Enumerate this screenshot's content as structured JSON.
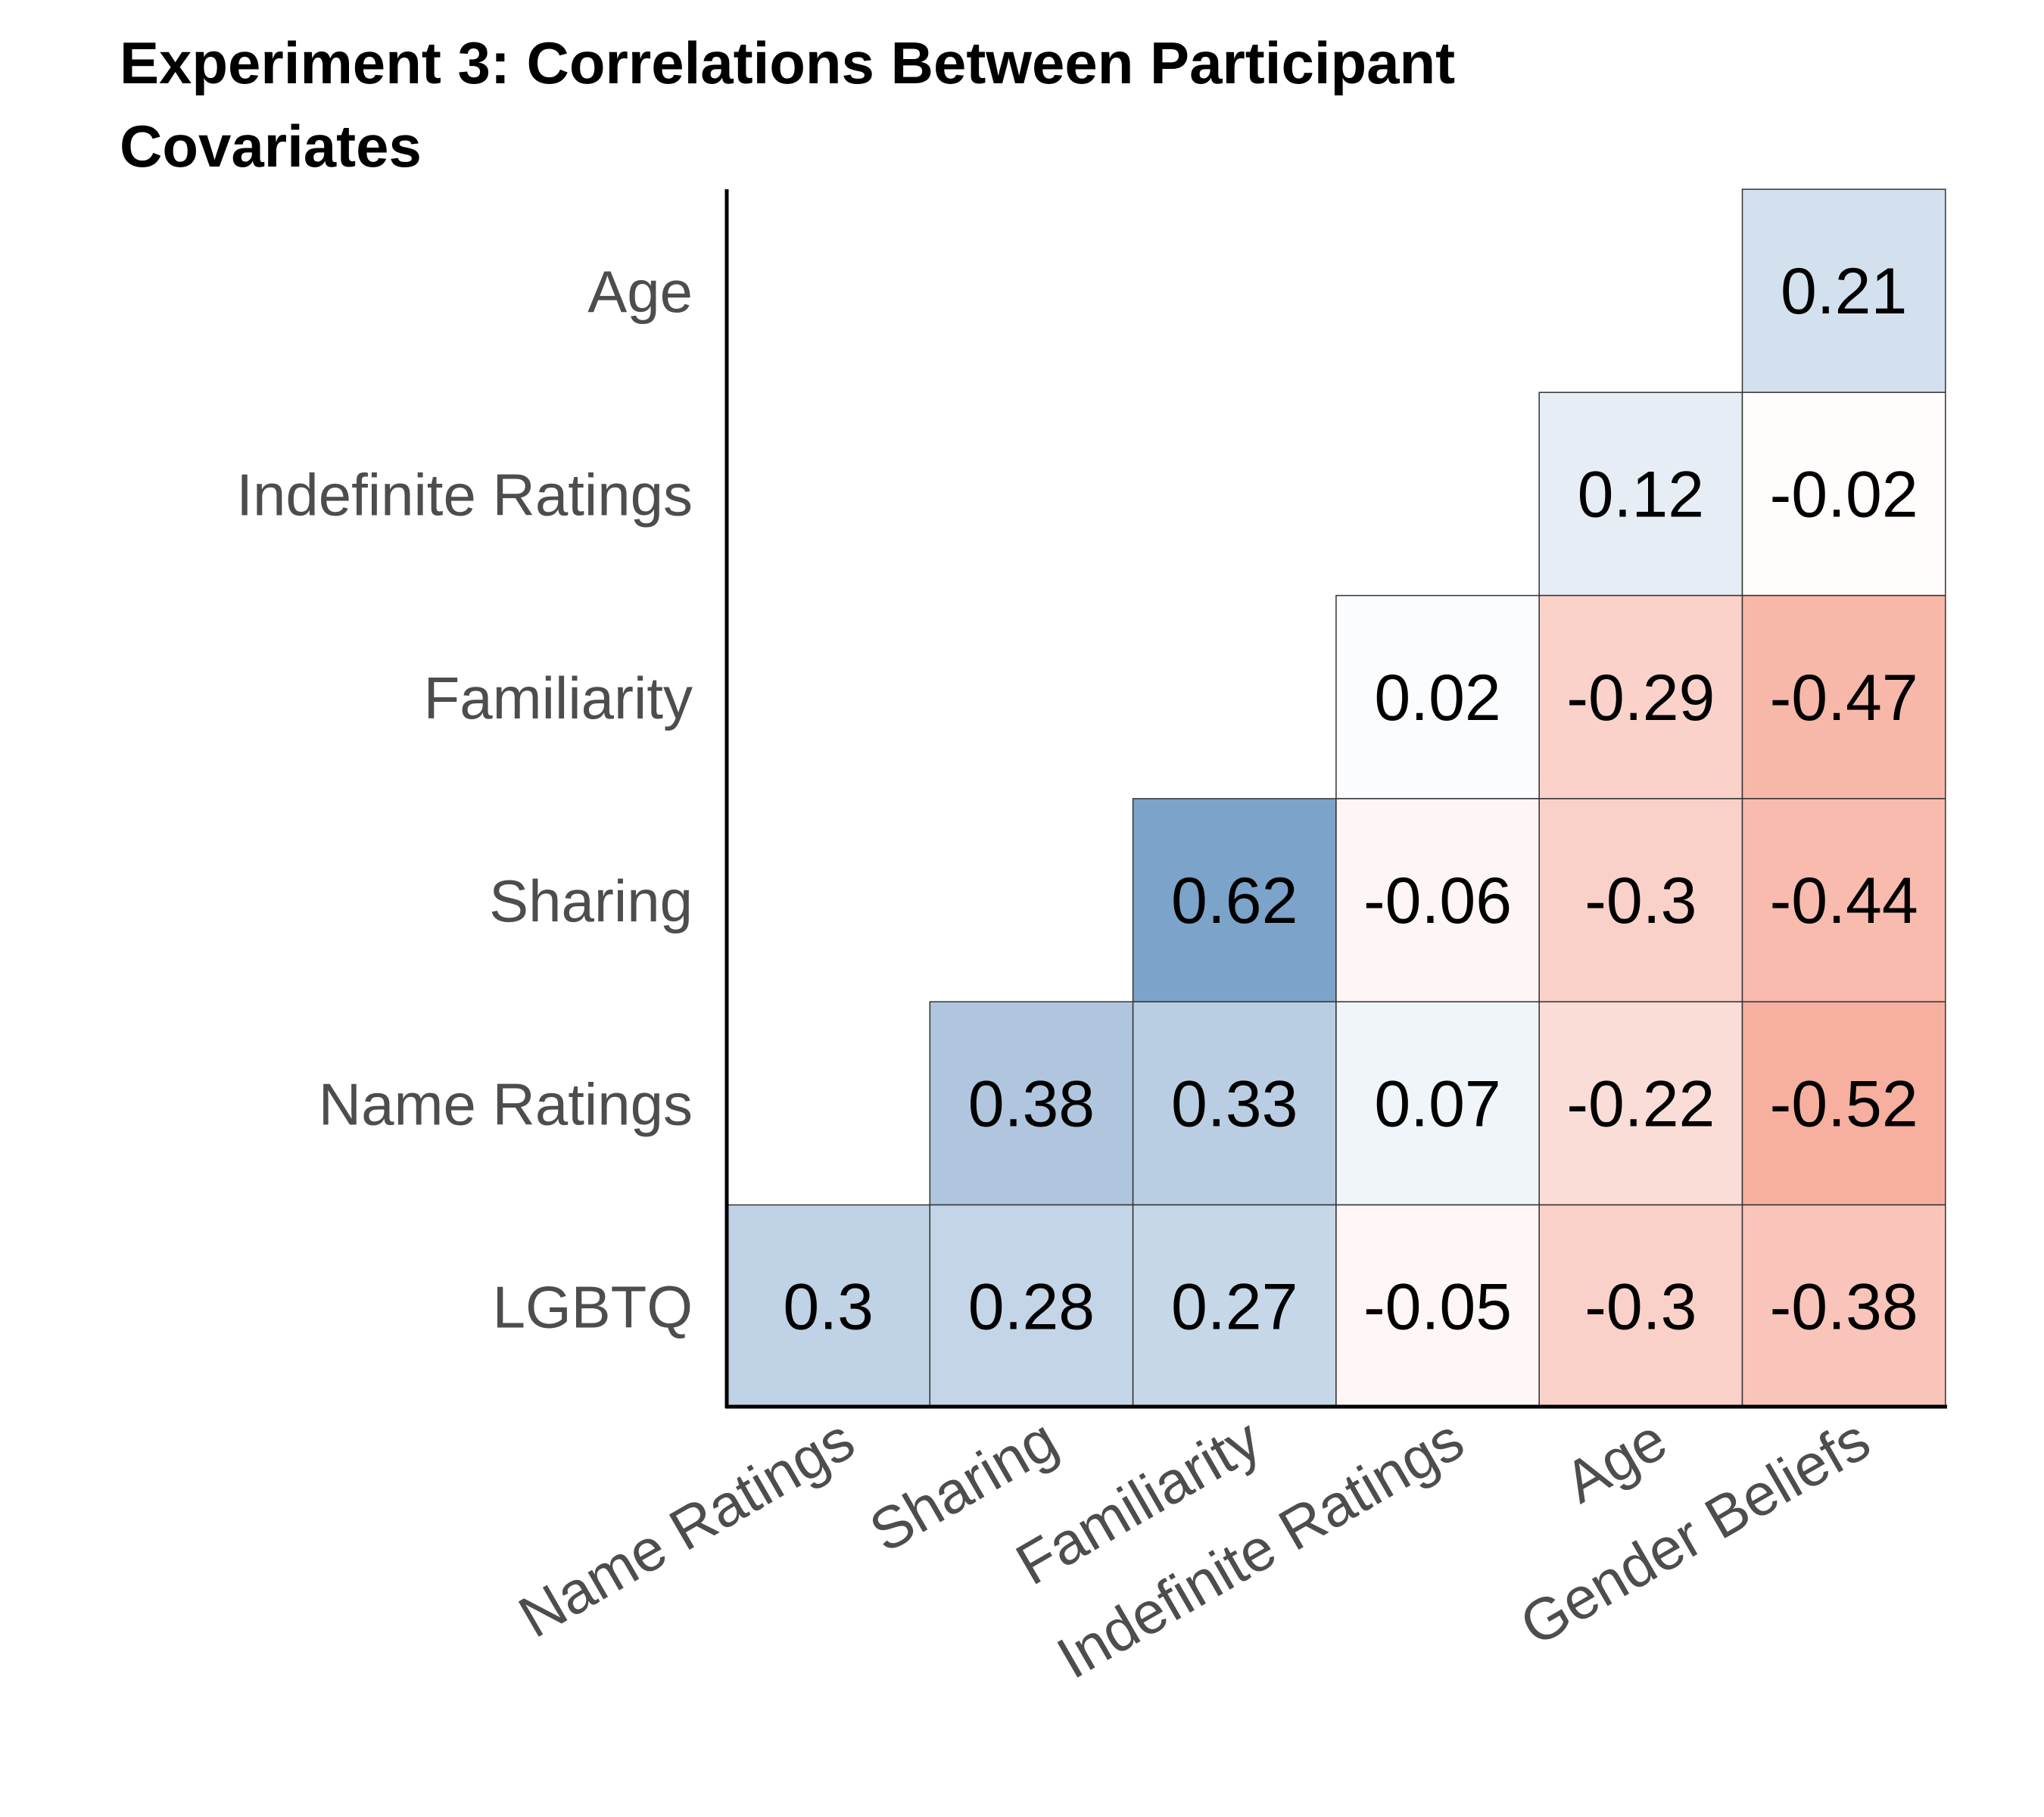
{
  "chart_data": {
    "type": "heatmap",
    "title_lines": [
      "Experiment 3: Correlations Between Participant",
      "Covariates"
    ],
    "xlabel": "",
    "ylabel": "",
    "x_categories": [
      "Name Ratings",
      "Sharing",
      "Familiarity",
      "Indefinite Ratings",
      "Age",
      "Gender Beliefs"
    ],
    "y_categories": [
      "Age",
      "Indefinite Ratings",
      "Familiarity",
      "Sharing",
      "Name Ratings",
      "LGBTQ"
    ],
    "color_scale": {
      "negative": "#ef6548",
      "zero": "#ffffff",
      "positive": "#2c6aa8",
      "range": [
        -1,
        1
      ]
    },
    "cells": [
      {
        "row": "Age",
        "col": "Gender Beliefs",
        "value": 0.21,
        "label": "0.21"
      },
      {
        "row": "Indefinite Ratings",
        "col": "Age",
        "value": 0.12,
        "label": "0.12"
      },
      {
        "row": "Indefinite Ratings",
        "col": "Gender Beliefs",
        "value": -0.02,
        "label": "-0.02"
      },
      {
        "row": "Familiarity",
        "col": "Indefinite Ratings",
        "value": 0.02,
        "label": "0.02"
      },
      {
        "row": "Familiarity",
        "col": "Age",
        "value": -0.29,
        "label": "-0.29"
      },
      {
        "row": "Familiarity",
        "col": "Gender Beliefs",
        "value": -0.47,
        "label": "-0.47"
      },
      {
        "row": "Sharing",
        "col": "Familiarity",
        "value": 0.62,
        "label": "0.62"
      },
      {
        "row": "Sharing",
        "col": "Indefinite Ratings",
        "value": -0.06,
        "label": "-0.06"
      },
      {
        "row": "Sharing",
        "col": "Age",
        "value": -0.3,
        "label": "-0.3"
      },
      {
        "row": "Sharing",
        "col": "Gender Beliefs",
        "value": -0.44,
        "label": "-0.44"
      },
      {
        "row": "Name Ratings",
        "col": "Sharing",
        "value": 0.38,
        "label": "0.38"
      },
      {
        "row": "Name Ratings",
        "col": "Familiarity",
        "value": 0.33,
        "label": "0.33"
      },
      {
        "row": "Name Ratings",
        "col": "Indefinite Ratings",
        "value": 0.07,
        "label": "0.07"
      },
      {
        "row": "Name Ratings",
        "col": "Age",
        "value": -0.22,
        "label": "-0.22"
      },
      {
        "row": "Name Ratings",
        "col": "Gender Beliefs",
        "value": -0.52,
        "label": "-0.52"
      },
      {
        "row": "LGBTQ",
        "col": "Name Ratings",
        "value": 0.3,
        "label": "0.3"
      },
      {
        "row": "LGBTQ",
        "col": "Sharing",
        "value": 0.28,
        "label": "0.28"
      },
      {
        "row": "LGBTQ",
        "col": "Familiarity",
        "value": 0.27,
        "label": "0.27"
      },
      {
        "row": "LGBTQ",
        "col": "Indefinite Ratings",
        "value": -0.05,
        "label": "-0.05"
      },
      {
        "row": "LGBTQ",
        "col": "Age",
        "value": -0.3,
        "label": "-0.3"
      },
      {
        "row": "LGBTQ",
        "col": "Gender Beliefs",
        "value": -0.38,
        "label": "-0.38"
      }
    ],
    "legend": "none",
    "grid": false
  }
}
